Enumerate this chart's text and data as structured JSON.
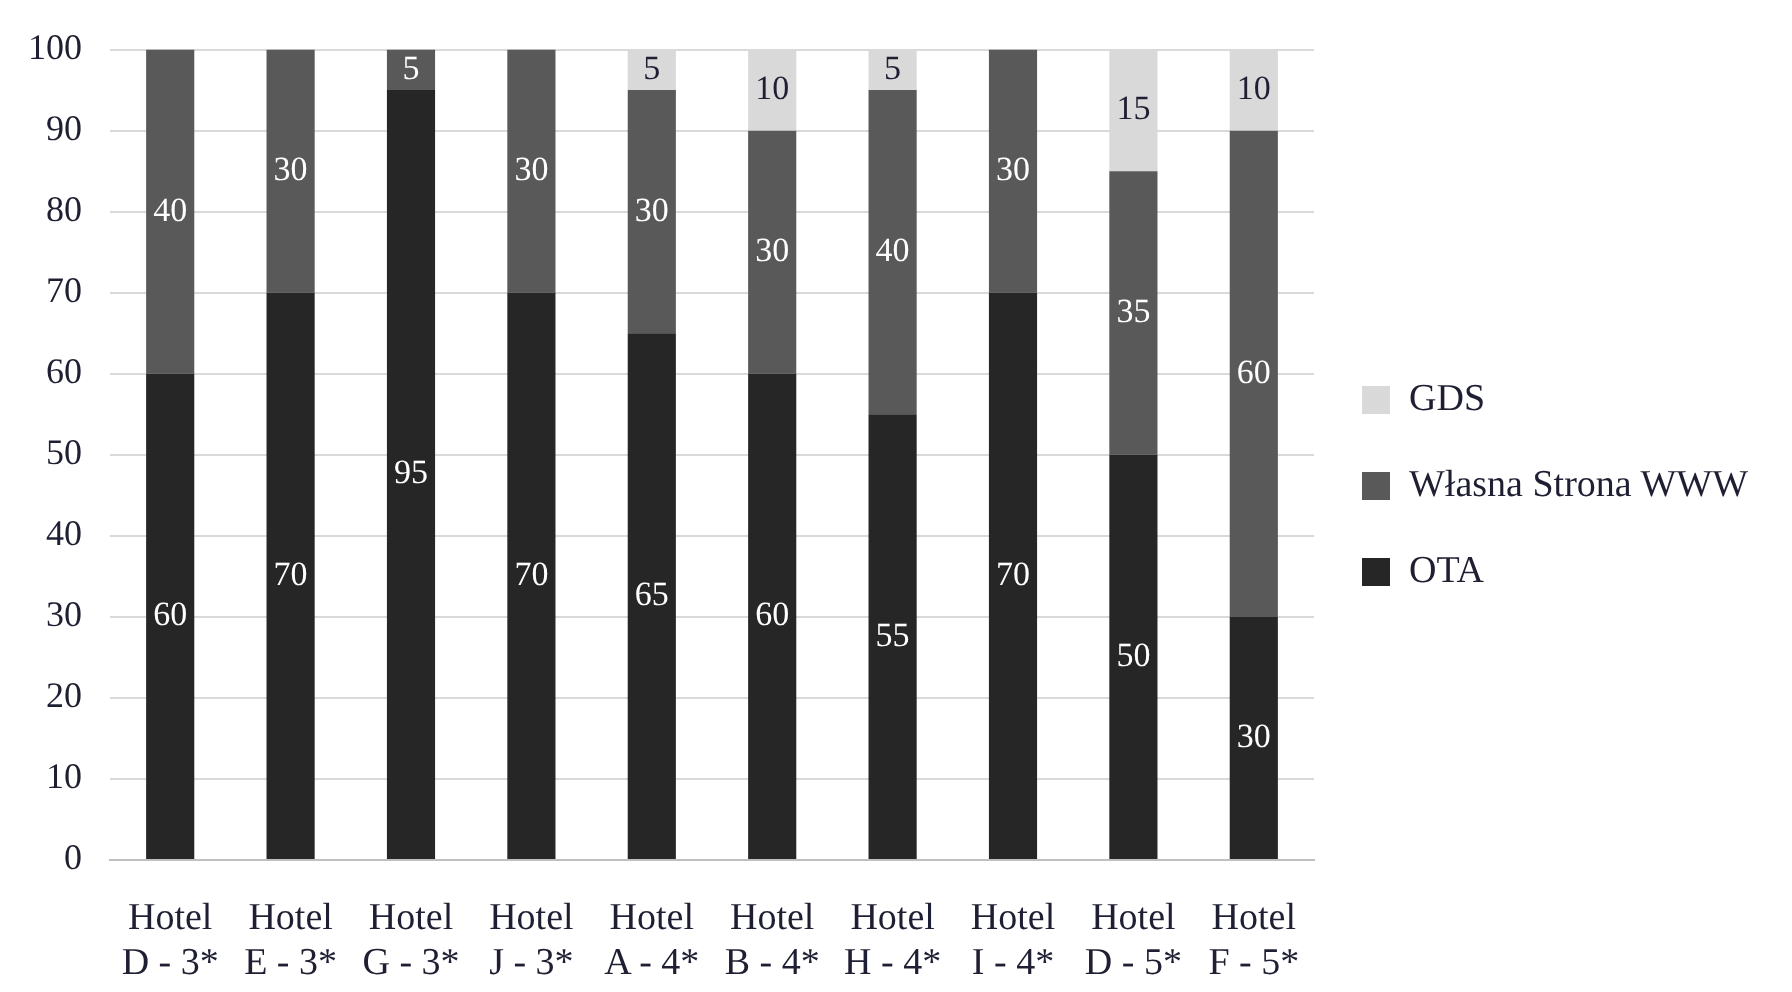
{
  "chart_data": {
    "type": "bar",
    "stacked": true,
    "categories": [
      "Hotel D - 3*",
      "Hotel E - 3*",
      "Hotel G - 3*",
      "Hotel J - 3*",
      "Hotel A - 4*",
      "Hotel B - 4*",
      "Hotel H - 4*",
      "Hotel I - 4*",
      "Hotel D - 5*",
      "Hotel F - 5*"
    ],
    "series": [
      {
        "name": "OTA",
        "color": "#262626",
        "values": [
          60,
          70,
          95,
          70,
          65,
          60,
          55,
          70,
          50,
          30
        ]
      },
      {
        "name": "Własna Strona WWW",
        "color": "#595959",
        "values": [
          40,
          30,
          5,
          30,
          30,
          30,
          40,
          30,
          35,
          60
        ]
      },
      {
        "name": "GDS",
        "color": "#d9d9d9",
        "values": [
          null,
          null,
          null,
          null,
          5,
          10,
          5,
          null,
          15,
          10
        ]
      }
    ],
    "ylim": [
      0,
      100
    ],
    "yticks": [
      0,
      10,
      20,
      30,
      40,
      50,
      60,
      70,
      80,
      90,
      100
    ],
    "grid": "y",
    "legend": "right",
    "data_labels": true
  }
}
